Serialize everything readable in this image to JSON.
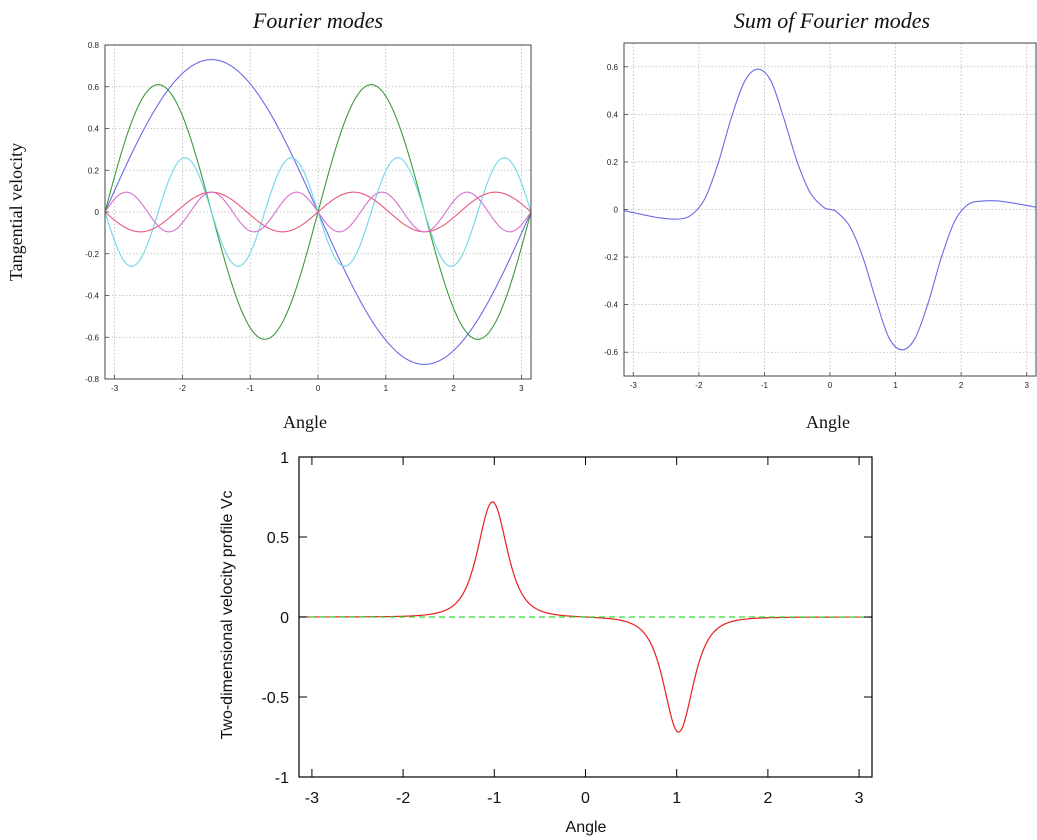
{
  "figure": {
    "left_ylabel": "Tangential velocity"
  },
  "chart_data": [
    {
      "type": "line",
      "title": "Fourier modes",
      "xlabel": "Angle",
      "ylabel": "Tangential velocity",
      "xlim": [
        -3.14159,
        3.14159
      ],
      "ylim": [
        -0.8,
        0.8
      ],
      "xticks": [
        -3,
        -2,
        -1,
        0,
        1,
        2,
        3
      ],
      "yticks": [
        -0.8,
        -0.6,
        -0.4,
        -0.2,
        0,
        0.2,
        0.4,
        0.6,
        0.8
      ],
      "grid": true,
      "series": [
        {
          "color": "#6a6ae6",
          "amplitude": -0.73,
          "frequency": 1
        },
        {
          "color": "#3d9a3d",
          "amplitude": 0.61,
          "frequency": 2
        },
        {
          "color": "#6fd8e3",
          "amplitude": -0.26,
          "frequency": 4
        },
        {
          "color": "#e85a7a",
          "amplitude": 0.095,
          "frequency": 3
        },
        {
          "color": "#d870d0",
          "amplitude": -0.095,
          "frequency": 5
        }
      ]
    },
    {
      "type": "line",
      "title": "Sum of Fourier modes",
      "xlabel": "Angle",
      "xlim": [
        -3.14159,
        3.14159
      ],
      "ylim": [
        -0.7,
        0.7
      ],
      "xticks": [
        -3,
        -2,
        -1,
        0,
        1,
        2,
        3
      ],
      "yticks": [
        -0.6,
        -0.4,
        -0.2,
        0,
        0.2,
        0.4,
        0.6
      ],
      "grid": true,
      "series": [
        {
          "color": "#6a6ae6",
          "x": [
            -3.14,
            -2.6,
            -2.3,
            -2.1,
            -1.9,
            -1.7,
            -1.5,
            -1.3,
            -1.1,
            -0.9,
            -0.7,
            -0.5,
            -0.3,
            -0.1,
            0,
            0.1,
            0.3,
            0.5,
            0.7,
            0.9,
            1.1,
            1.3,
            1.5,
            1.7,
            1.9,
            2.1,
            2.3,
            2.6,
            3.14
          ],
          "y": [
            -0.005,
            -0.035,
            -0.04,
            -0.02,
            0.05,
            0.2,
            0.39,
            0.54,
            0.59,
            0.54,
            0.38,
            0.2,
            0.07,
            0.01,
            0,
            -0.01,
            -0.07,
            -0.2,
            -0.38,
            -0.54,
            -0.59,
            -0.54,
            -0.39,
            -0.2,
            -0.05,
            0.02,
            0.035,
            0.035,
            0.01
          ]
        }
      ]
    },
    {
      "type": "line",
      "xlabel": "Angle",
      "ylabel": "Two-dimensional velocity profile Vc",
      "xlim": [
        -3.14159,
        3.14159
      ],
      "ylim": [
        -1,
        1
      ],
      "xticks": [
        -3,
        -2,
        -1,
        0,
        1,
        2,
        3
      ],
      "yticks": [
        -1,
        -0.5,
        0,
        0.5,
        1
      ],
      "ytick_labels": [
        "-1",
        "-0.5",
        "0",
        "0.5",
        "1"
      ],
      "grid": false,
      "series": [
        {
          "color": "#e8201c",
          "peak": 0.72,
          "center": 1.02,
          "width": 0.25
        },
        {
          "color": "#33d933",
          "dashed": true,
          "y": 0
        }
      ]
    }
  ]
}
